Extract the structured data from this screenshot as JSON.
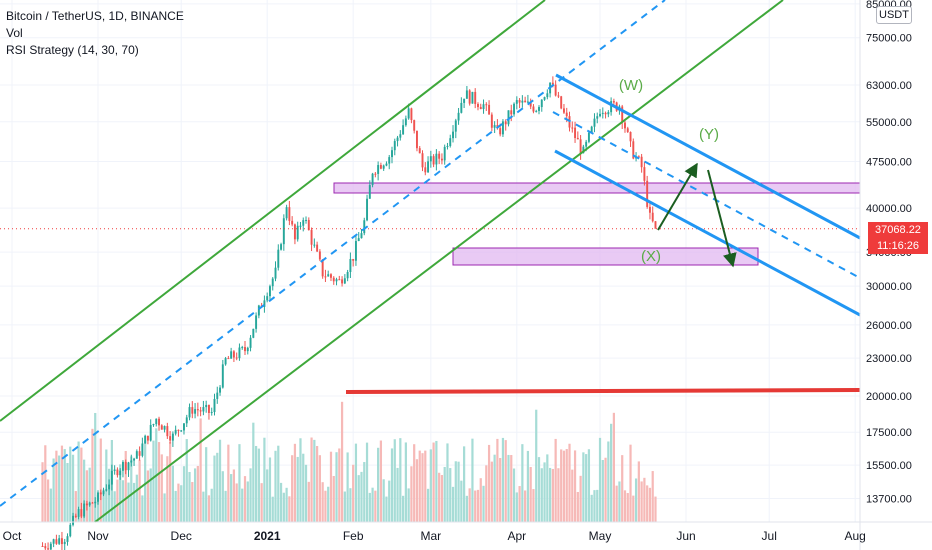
{
  "legend": {
    "symbol": "Bitcoin / TetherUS, 1D, BINANCE",
    "vol": "Vol",
    "rsi": "RSI Strategy (14, 30, 70)"
  },
  "currency_button": "USDT",
  "price_tag": {
    "price": "37068.22",
    "countdown": "11:16:26"
  },
  "wave_labels": {
    "w": "(W)",
    "x": "(X)",
    "y": "(Y)"
  },
  "colors": {
    "up": "#26a69a",
    "down": "#ef5350",
    "channel": "#3fa83b",
    "trend": "#2196f3",
    "zone": "#e1b8f0",
    "zone_border": "#9c27b0",
    "support": "#e53935",
    "arrow": "#1b5e20",
    "last_price": "#ef3b3b",
    "vol_up": "#a6dcd6",
    "vol_down": "#f6b9b7"
  },
  "chart_data": {
    "type": "candlestick",
    "title": "Bitcoin / TetherUS, 1D, BINANCE",
    "y_scale": "log",
    "y_ticks": [
      85000,
      75000,
      63000,
      55000,
      47500,
      40000,
      34000,
      30000,
      26000,
      23000,
      20000,
      17500,
      15500,
      13700
    ],
    "y_tick_labels": [
      "85000.00",
      "75000.00",
      "63000.00",
      "55000.00",
      "47500.00",
      "40000.00",
      "34000.00",
      "30000.00",
      "26000.00",
      "23000.00",
      "20000.00",
      "17500.00",
      "15500.00",
      "13700.00"
    ],
    "x_tick_labels": [
      "Oct",
      "Nov",
      "Dec",
      "2021",
      "Feb",
      "Mar",
      "Apr",
      "May",
      "Jun",
      "Jul",
      "Aug"
    ],
    "x_tick_dates": [
      "2020-10-01",
      "2020-11-01",
      "2020-12-01",
      "2021-01-01",
      "2021-02-01",
      "2021-03-01",
      "2021-04-01",
      "2021-05-01",
      "2021-06-01",
      "2021-07-01",
      "2021-08-01"
    ],
    "last_price": 37068.22,
    "close_series": [
      {
        "date": "2020-10-12",
        "close": 11500
      },
      {
        "date": "2020-10-20",
        "close": 11900
      },
      {
        "date": "2020-10-25",
        "close": 13000
      },
      {
        "date": "2020-11-01",
        "close": 13700
      },
      {
        "date": "2020-11-08",
        "close": 15300
      },
      {
        "date": "2020-11-15",
        "close": 16000
      },
      {
        "date": "2020-11-22",
        "close": 18400
      },
      {
        "date": "2020-11-28",
        "close": 17200
      },
      {
        "date": "2020-12-05",
        "close": 19100
      },
      {
        "date": "2020-12-12",
        "close": 18800
      },
      {
        "date": "2020-12-17",
        "close": 22800
      },
      {
        "date": "2020-12-24",
        "close": 23700
      },
      {
        "date": "2020-12-31",
        "close": 29000
      },
      {
        "date": "2021-01-04",
        "close": 31500
      },
      {
        "date": "2021-01-08",
        "close": 40600
      },
      {
        "date": "2021-01-11",
        "close": 35500
      },
      {
        "date": "2021-01-14",
        "close": 39000
      },
      {
        "date": "2021-01-21",
        "close": 31500
      },
      {
        "date": "2021-01-27",
        "close": 30500
      },
      {
        "date": "2021-02-01",
        "close": 33500
      },
      {
        "date": "2021-02-05",
        "close": 38000
      },
      {
        "date": "2021-02-08",
        "close": 46000
      },
      {
        "date": "2021-02-14",
        "close": 48500
      },
      {
        "date": "2021-02-21",
        "close": 57000
      },
      {
        "date": "2021-02-26",
        "close": 46500
      },
      {
        "date": "2021-03-05",
        "close": 48500
      },
      {
        "date": "2021-03-13",
        "close": 61000
      },
      {
        "date": "2021-03-20",
        "close": 58500
      },
      {
        "date": "2021-03-25",
        "close": 52500
      },
      {
        "date": "2021-04-01",
        "close": 59000
      },
      {
        "date": "2021-04-08",
        "close": 58000
      },
      {
        "date": "2021-04-13",
        "close": 63500
      },
      {
        "date": "2021-04-18",
        "close": 56500
      },
      {
        "date": "2021-04-25",
        "close": 49000
      },
      {
        "date": "2021-05-01",
        "close": 57800
      },
      {
        "date": "2021-05-08",
        "close": 58500
      },
      {
        "date": "2021-05-12",
        "close": 50000
      },
      {
        "date": "2021-05-16",
        "close": 46500
      },
      {
        "date": "2021-05-19",
        "close": 38500
      },
      {
        "date": "2021-05-21",
        "close": 37068.22
      }
    ]
  }
}
